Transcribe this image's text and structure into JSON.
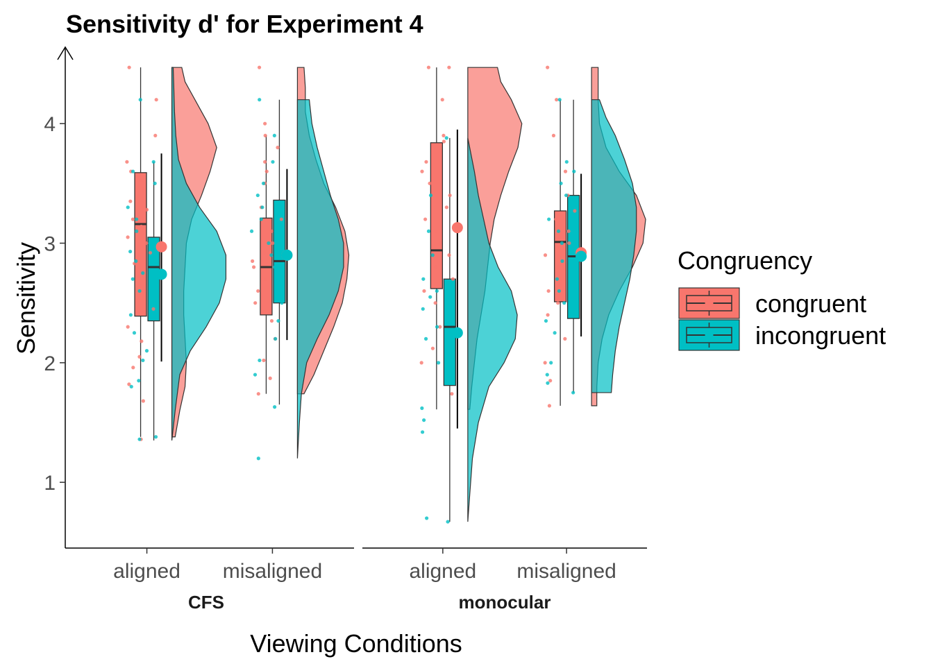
{
  "chart_data": {
    "type": "raincloud",
    "title": "Sensitivity d' for Experiment 4",
    "xlabel": "Viewing Conditions",
    "ylabel": "Sensitivity",
    "ylim": [
      0.45,
      4.5
    ],
    "yticks": [
      1,
      2,
      3,
      4
    ],
    "grid": false,
    "legend": {
      "title": "Congruency",
      "position": "right",
      "entries": [
        {
          "label": "congruent",
          "color": "#F8766D"
        },
        {
          "label": "incongruent",
          "color": "#00BFC4"
        }
      ]
    },
    "panels": [
      {
        "label": "CFS",
        "categories": [
          "aligned",
          "misaligned"
        ],
        "groups": [
          {
            "category": "aligned",
            "congruent": {
              "box": {
                "min": 1.38,
                "q1": 2.39,
                "median": 3.16,
                "q3": 3.59,
                "max": 4.47
              },
              "mean": 2.97,
              "mean_range": [
                2.01,
                3.75
              ],
              "density": [
                [
                  1.38,
                  0.05
                ],
                [
                  1.6,
                  0.12
                ],
                [
                  1.8,
                  0.2
                ],
                [
                  2.0,
                  0.22
                ],
                [
                  2.2,
                  0.2
                ],
                [
                  2.4,
                  0.18
                ],
                [
                  2.6,
                  0.18
                ],
                [
                  2.8,
                  0.2
                ],
                [
                  3.0,
                  0.22
                ],
                [
                  3.2,
                  0.3
                ],
                [
                  3.4,
                  0.45
                ],
                [
                  3.6,
                  0.58
                ],
                [
                  3.8,
                  0.68
                ],
                [
                  4.0,
                  0.55
                ],
                [
                  4.2,
                  0.35
                ],
                [
                  4.35,
                  0.2
                ],
                [
                  4.47,
                  0.15
                ]
              ],
              "points": [
                1.36,
                1.68,
                1.82,
                1.96,
                2.05,
                2.18,
                2.3,
                2.45,
                2.6,
                2.72,
                2.83,
                2.92,
                3.0,
                3.05,
                3.14,
                3.2,
                3.28,
                3.35,
                3.45,
                3.52,
                3.6,
                3.68,
                3.9,
                4.2,
                4.47
              ]
            },
            "incongruent": {
              "box": {
                "min": 1.35,
                "q1": 2.35,
                "median": 2.8,
                "q3": 3.05,
                "max": 3.68
              },
              "mean": 2.74,
              "mean_range": [
                2.01,
                3.75
              ],
              "density": [
                [
                  1.35,
                  0.0
                ],
                [
                  1.6,
                  0.05
                ],
                [
                  1.9,
                  0.12
                ],
                [
                  2.1,
                  0.28
                ],
                [
                  2.3,
                  0.52
                ],
                [
                  2.5,
                  0.72
                ],
                [
                  2.7,
                  0.82
                ],
                [
                  2.9,
                  0.82
                ],
                [
                  3.1,
                  0.68
                ],
                [
                  3.3,
                  0.42
                ],
                [
                  3.5,
                  0.22
                ],
                [
                  3.7,
                  0.1
                ],
                [
                  3.9,
                  0.06
                ],
                [
                  4.1,
                  0.04
                ],
                [
                  4.3,
                  0.03
                ],
                [
                  4.47,
                  0.02
                ]
              ],
              "points": [
                1.36,
                1.38,
                1.8,
                1.85,
                2.02,
                2.1,
                2.25,
                2.4,
                2.5,
                2.6,
                2.7,
                2.75,
                2.85,
                2.93,
                3.0,
                3.1,
                3.2,
                3.3,
                3.5,
                3.6,
                3.68,
                4.2
              ]
            }
          },
          {
            "category": "misaligned",
            "congruent": {
              "box": {
                "min": 1.74,
                "q1": 2.4,
                "median": 2.8,
                "q3": 3.21,
                "max": 3.9
              },
              "mean": 2.9,
              "mean_range": [
                2.19,
                3.62
              ],
              "density": [
                [
                  1.74,
                  0.1
                ],
                [
                  1.9,
                  0.25
                ],
                [
                  2.1,
                  0.4
                ],
                [
                  2.3,
                  0.55
                ],
                [
                  2.5,
                  0.68
                ],
                [
                  2.7,
                  0.75
                ],
                [
                  2.9,
                  0.78
                ],
                [
                  3.1,
                  0.72
                ],
                [
                  3.3,
                  0.58
                ],
                [
                  3.5,
                  0.4
                ],
                [
                  3.7,
                  0.28
                ],
                [
                  3.9,
                  0.18
                ],
                [
                  4.1,
                  0.12
                ],
                [
                  4.3,
                  0.12
                ],
                [
                  4.47,
                  0.1
                ]
              ],
              "points": [
                1.74,
                1.87,
                2.02,
                2.2,
                2.35,
                2.5,
                2.6,
                2.7,
                2.8,
                2.85,
                2.92,
                3.0,
                3.1,
                3.2,
                3.3,
                3.5,
                3.6,
                3.68,
                3.8,
                3.9,
                4.0,
                4.47
              ]
            },
            "incongruent": {
              "box": {
                "min": 1.65,
                "q1": 2.5,
                "median": 2.85,
                "q3": 3.36,
                "max": 4.2
              },
              "mean": 2.9,
              "mean_range": [
                2.19,
                3.62
              ],
              "density": [
                [
                  1.2,
                  0.0
                ],
                [
                  1.5,
                  0.03
                ],
                [
                  1.74,
                  0.06
                ],
                [
                  2.0,
                  0.14
                ],
                [
                  2.2,
                  0.3
                ],
                [
                  2.4,
                  0.48
                ],
                [
                  2.6,
                  0.62
                ],
                [
                  2.8,
                  0.7
                ],
                [
                  3.0,
                  0.7
                ],
                [
                  3.2,
                  0.62
                ],
                [
                  3.4,
                  0.5
                ],
                [
                  3.6,
                  0.4
                ],
                [
                  3.8,
                  0.3
                ],
                [
                  4.0,
                  0.22
                ],
                [
                  4.2,
                  0.18
                ]
              ],
              "points": [
                1.2,
                1.63,
                1.9,
                2.02,
                2.2,
                2.35,
                2.5,
                2.6,
                2.7,
                2.8,
                2.9,
                3.0,
                3.1,
                3.2,
                3.3,
                3.4,
                3.5,
                3.68,
                3.9,
                4.2
              ]
            }
          }
        ]
      },
      {
        "label": "monocular",
        "categories": [
          "aligned",
          "misaligned"
        ],
        "groups": [
          {
            "category": "aligned",
            "congruent": {
              "box": {
                "min": 1.61,
                "q1": 2.62,
                "median": 2.94,
                "q3": 3.84,
                "max": 4.47
              },
              "mean": 3.13,
              "mean_range": [
                1.45,
                3.95
              ],
              "density": [
                [
                  1.61,
                  0.03
                ],
                [
                  1.8,
                  0.06
                ],
                [
                  2.0,
                  0.1
                ],
                [
                  2.2,
                  0.14
                ],
                [
                  2.4,
                  0.2
                ],
                [
                  2.6,
                  0.26
                ],
                [
                  2.8,
                  0.3
                ],
                [
                  3.0,
                  0.34
                ],
                [
                  3.2,
                  0.4
                ],
                [
                  3.4,
                  0.5
                ],
                [
                  3.6,
                  0.62
                ],
                [
                  3.8,
                  0.76
                ],
                [
                  4.0,
                  0.82
                ],
                [
                  4.2,
                  0.66
                ],
                [
                  4.35,
                  0.5
                ],
                [
                  4.47,
                  0.45
                ]
              ],
              "points": [
                1.74,
                2.0,
                2.12,
                2.3,
                2.5,
                2.6,
                2.7,
                2.8,
                2.9,
                3.0,
                3.1,
                3.2,
                3.3,
                3.4,
                3.5,
                3.6,
                3.68,
                3.85,
                3.9,
                4.2,
                4.47,
                4.47
              ]
            },
            "incongruent": {
              "box": {
                "min": 0.67,
                "q1": 1.81,
                "median": 2.3,
                "q3": 2.7,
                "max": 3.88
              },
              "mean": 2.25,
              "mean_range": [
                1.45,
                3.95
              ],
              "density": [
                [
                  0.67,
                  0.0
                ],
                [
                  0.9,
                  0.03
                ],
                [
                  1.2,
                  0.07
                ],
                [
                  1.5,
                  0.16
                ],
                [
                  1.8,
                  0.32
                ],
                [
                  2.0,
                  0.55
                ],
                [
                  2.2,
                  0.72
                ],
                [
                  2.4,
                  0.75
                ],
                [
                  2.6,
                  0.66
                ],
                [
                  2.8,
                  0.46
                ],
                [
                  3.0,
                  0.32
                ],
                [
                  3.2,
                  0.24
                ],
                [
                  3.4,
                  0.16
                ],
                [
                  3.6,
                  0.1
                ],
                [
                  3.88,
                  0.0
                ]
              ],
              "points": [
                0.67,
                0.7,
                1.42,
                1.52,
                1.62,
                2.0,
                2.05,
                2.1,
                2.2,
                2.3,
                2.45,
                2.55,
                2.6,
                2.7,
                2.9,
                3.1,
                3.4,
                3.88
              ]
            }
          },
          {
            "category": "misaligned",
            "congruent": {
              "box": {
                "min": 1.64,
                "q1": 2.51,
                "median": 3.01,
                "q3": 3.27,
                "max": 4.2
              },
              "mean": 2.92,
              "mean_range": [
                2.22,
                3.58
              ],
              "density": [
                [
                  1.64,
                  0.08
                ],
                [
                  1.8,
                  0.08
                ],
                [
                  2.0,
                  0.1
                ],
                [
                  2.2,
                  0.16
                ],
                [
                  2.4,
                  0.26
                ],
                [
                  2.6,
                  0.42
                ],
                [
                  2.8,
                  0.62
                ],
                [
                  3.0,
                  0.78
                ],
                [
                  3.2,
                  0.82
                ],
                [
                  3.4,
                  0.68
                ],
                [
                  3.6,
                  0.42
                ],
                [
                  3.8,
                  0.22
                ],
                [
                  4.0,
                  0.12
                ],
                [
                  4.2,
                  0.1
                ],
                [
                  4.35,
                  0.1
                ],
                [
                  4.47,
                  0.1
                ]
              ],
              "points": [
                1.64,
                1.85,
                2.0,
                2.2,
                2.4,
                2.5,
                2.6,
                2.7,
                2.8,
                2.9,
                3.0,
                3.05,
                3.1,
                3.2,
                3.27,
                3.4,
                3.6,
                3.9,
                4.2,
                4.47
              ]
            },
            "incongruent": {
              "box": {
                "min": 1.75,
                "q1": 2.37,
                "median": 2.89,
                "q3": 3.4,
                "max": 4.2
              },
              "mean": 2.89,
              "mean_range": [
                2.22,
                3.58
              ],
              "density": [
                [
                  1.75,
                  0.3
                ],
                [
                  1.9,
                  0.32
                ],
                [
                  2.1,
                  0.36
                ],
                [
                  2.3,
                  0.42
                ],
                [
                  2.5,
                  0.5
                ],
                [
                  2.7,
                  0.58
                ],
                [
                  2.9,
                  0.64
                ],
                [
                  3.1,
                  0.68
                ],
                [
                  3.3,
                  0.68
                ],
                [
                  3.5,
                  0.62
                ],
                [
                  3.7,
                  0.5
                ],
                [
                  3.9,
                  0.36
                ],
                [
                  4.05,
                  0.22
                ],
                [
                  4.2,
                  0.12
                ]
              ],
              "points": [
                1.75,
                1.83,
                1.9,
                2.0,
                2.25,
                2.35,
                2.5,
                2.6,
                2.7,
                2.85,
                2.95,
                3.0,
                3.1,
                3.2,
                3.3,
                3.4,
                3.5,
                3.6,
                3.68,
                4.2
              ]
            }
          }
        ]
      }
    ]
  }
}
